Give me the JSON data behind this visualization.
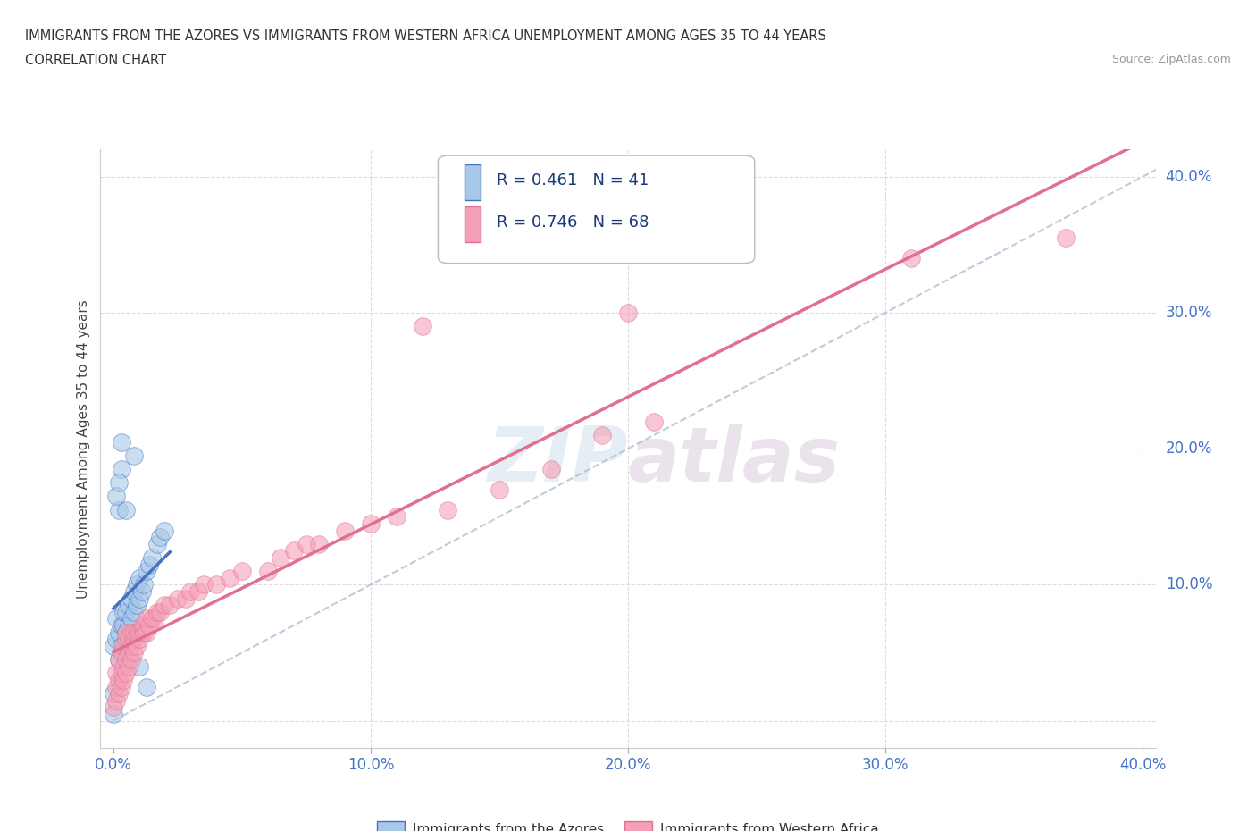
{
  "title_line1": "IMMIGRANTS FROM THE AZORES VS IMMIGRANTS FROM WESTERN AFRICA UNEMPLOYMENT AMONG AGES 35 TO 44 YEARS",
  "title_line2": "CORRELATION CHART",
  "source": "Source: ZipAtlas.com",
  "ylabel": "Unemployment Among Ages 35 to 44 years",
  "xlim": [
    -0.005,
    0.405
  ],
  "ylim": [
    -0.02,
    0.42
  ],
  "xticks": [
    0.0,
    0.1,
    0.2,
    0.3,
    0.4
  ],
  "yticks": [
    0.0,
    0.1,
    0.2,
    0.3,
    0.4
  ],
  "xticklabels": [
    "0.0%",
    "10.0%",
    "20.0%",
    "30.0%",
    "40.0%"
  ],
  "yticklabels": [
    "10.0%",
    "20.0%",
    "30.0%",
    "40.0%"
  ],
  "color_azores": "#a8c8e8",
  "color_africa": "#f4a0b8",
  "color_azores_line": "#4472c4",
  "color_africa_line": "#e07090",
  "color_diagonal": "#a8c8e8",
  "R_azores": 0.461,
  "N_azores": 41,
  "R_africa": 0.746,
  "N_africa": 68,
  "azores_scatter": [
    [
      0.0,
      0.055
    ],
    [
      0.001,
      0.06
    ],
    [
      0.001,
      0.075
    ],
    [
      0.002,
      0.045
    ],
    [
      0.002,
      0.065
    ],
    [
      0.003,
      0.055
    ],
    [
      0.003,
      0.07
    ],
    [
      0.004,
      0.05
    ],
    [
      0.004,
      0.07
    ],
    [
      0.004,
      0.08
    ],
    [
      0.005,
      0.065
    ],
    [
      0.005,
      0.08
    ],
    [
      0.006,
      0.07
    ],
    [
      0.006,
      0.085
    ],
    [
      0.007,
      0.075
    ],
    [
      0.007,
      0.09
    ],
    [
      0.008,
      0.08
    ],
    [
      0.008,
      0.095
    ],
    [
      0.009,
      0.085
    ],
    [
      0.009,
      0.1
    ],
    [
      0.01,
      0.09
    ],
    [
      0.01,
      0.105
    ],
    [
      0.011,
      0.095
    ],
    [
      0.012,
      0.1
    ],
    [
      0.013,
      0.11
    ],
    [
      0.014,
      0.115
    ],
    [
      0.015,
      0.12
    ],
    [
      0.017,
      0.13
    ],
    [
      0.018,
      0.135
    ],
    [
      0.02,
      0.14
    ],
    [
      0.002,
      0.155
    ],
    [
      0.005,
      0.155
    ],
    [
      0.003,
      0.185
    ],
    [
      0.008,
      0.195
    ],
    [
      0.003,
      0.205
    ],
    [
      0.001,
      0.165
    ],
    [
      0.002,
      0.175
    ],
    [
      0.0,
      0.02
    ],
    [
      0.0,
      0.005
    ],
    [
      0.01,
      0.04
    ],
    [
      0.013,
      0.025
    ]
  ],
  "africa_scatter": [
    [
      0.0,
      0.01
    ],
    [
      0.001,
      0.015
    ],
    [
      0.001,
      0.025
    ],
    [
      0.001,
      0.035
    ],
    [
      0.002,
      0.02
    ],
    [
      0.002,
      0.03
    ],
    [
      0.002,
      0.045
    ],
    [
      0.003,
      0.025
    ],
    [
      0.003,
      0.035
    ],
    [
      0.003,
      0.05
    ],
    [
      0.004,
      0.03
    ],
    [
      0.004,
      0.04
    ],
    [
      0.004,
      0.055
    ],
    [
      0.005,
      0.035
    ],
    [
      0.005,
      0.045
    ],
    [
      0.005,
      0.06
    ],
    [
      0.005,
      0.065
    ],
    [
      0.006,
      0.04
    ],
    [
      0.006,
      0.05
    ],
    [
      0.006,
      0.06
    ],
    [
      0.007,
      0.045
    ],
    [
      0.007,
      0.055
    ],
    [
      0.007,
      0.065
    ],
    [
      0.008,
      0.05
    ],
    [
      0.008,
      0.06
    ],
    [
      0.008,
      0.065
    ],
    [
      0.009,
      0.055
    ],
    [
      0.009,
      0.065
    ],
    [
      0.01,
      0.06
    ],
    [
      0.01,
      0.065
    ],
    [
      0.011,
      0.065
    ],
    [
      0.011,
      0.07
    ],
    [
      0.012,
      0.065
    ],
    [
      0.012,
      0.07
    ],
    [
      0.013,
      0.065
    ],
    [
      0.013,
      0.075
    ],
    [
      0.014,
      0.07
    ],
    [
      0.015,
      0.075
    ],
    [
      0.016,
      0.075
    ],
    [
      0.017,
      0.08
    ],
    [
      0.018,
      0.08
    ],
    [
      0.02,
      0.085
    ],
    [
      0.022,
      0.085
    ],
    [
      0.025,
      0.09
    ],
    [
      0.028,
      0.09
    ],
    [
      0.03,
      0.095
    ],
    [
      0.033,
      0.095
    ],
    [
      0.035,
      0.1
    ],
    [
      0.04,
      0.1
    ],
    [
      0.045,
      0.105
    ],
    [
      0.05,
      0.11
    ],
    [
      0.06,
      0.11
    ],
    [
      0.065,
      0.12
    ],
    [
      0.07,
      0.125
    ],
    [
      0.075,
      0.13
    ],
    [
      0.08,
      0.13
    ],
    [
      0.09,
      0.14
    ],
    [
      0.1,
      0.145
    ],
    [
      0.11,
      0.15
    ],
    [
      0.13,
      0.155
    ],
    [
      0.15,
      0.17
    ],
    [
      0.17,
      0.185
    ],
    [
      0.19,
      0.21
    ],
    [
      0.21,
      0.22
    ],
    [
      0.12,
      0.29
    ],
    [
      0.2,
      0.3
    ],
    [
      0.31,
      0.34
    ],
    [
      0.37,
      0.355
    ]
  ],
  "watermark_zip": "ZIP",
  "watermark_atlas": "atlas",
  "background_color": "#ffffff",
  "grid_color": "#dddddd"
}
